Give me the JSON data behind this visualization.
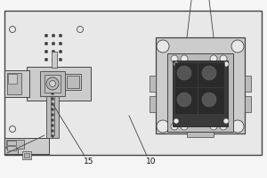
{
  "bg": "#f5f5f5",
  "plate_fc": "#e8e8e8",
  "plate_ec": "#444444",
  "lc": "#444444",
  "white": "#f0f0f0",
  "gray1": "#cccccc",
  "gray2": "#bbbbbb",
  "gray3": "#aaaaaa",
  "dark1": "#333333",
  "dark2": "#555555",
  "label_15": "15",
  "label_10": "10",
  "fs": 6.5
}
